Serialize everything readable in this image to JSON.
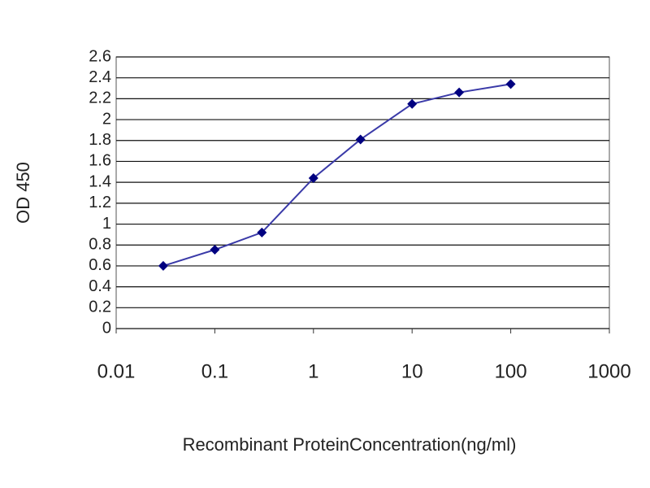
{
  "chart_data": {
    "type": "line",
    "xlabel": "Recombinant ProteinConcentration(ng/ml)",
    "ylabel": "OD 450",
    "x": [
      0.03,
      0.1,
      0.3,
      1,
      3,
      10,
      30,
      100
    ],
    "series": [
      {
        "name": "OD 450",
        "color": "#000080",
        "line_color": "#3a3aa8",
        "values": [
          0.6,
          0.755,
          0.92,
          1.44,
          1.81,
          2.15,
          2.26,
          2.34
        ]
      }
    ],
    "xlim": [
      0.01,
      1000
    ],
    "xticks": [
      0.01,
      0.1,
      1,
      10,
      100,
      1000
    ],
    "xscale": "log",
    "ylim": [
      0,
      2.6
    ],
    "yticks": [
      0,
      0.2,
      0.4,
      0.6,
      0.8,
      1,
      1.2,
      1.4,
      1.6,
      1.8,
      2,
      2.2,
      2.4,
      2.6
    ],
    "grid": true
  }
}
